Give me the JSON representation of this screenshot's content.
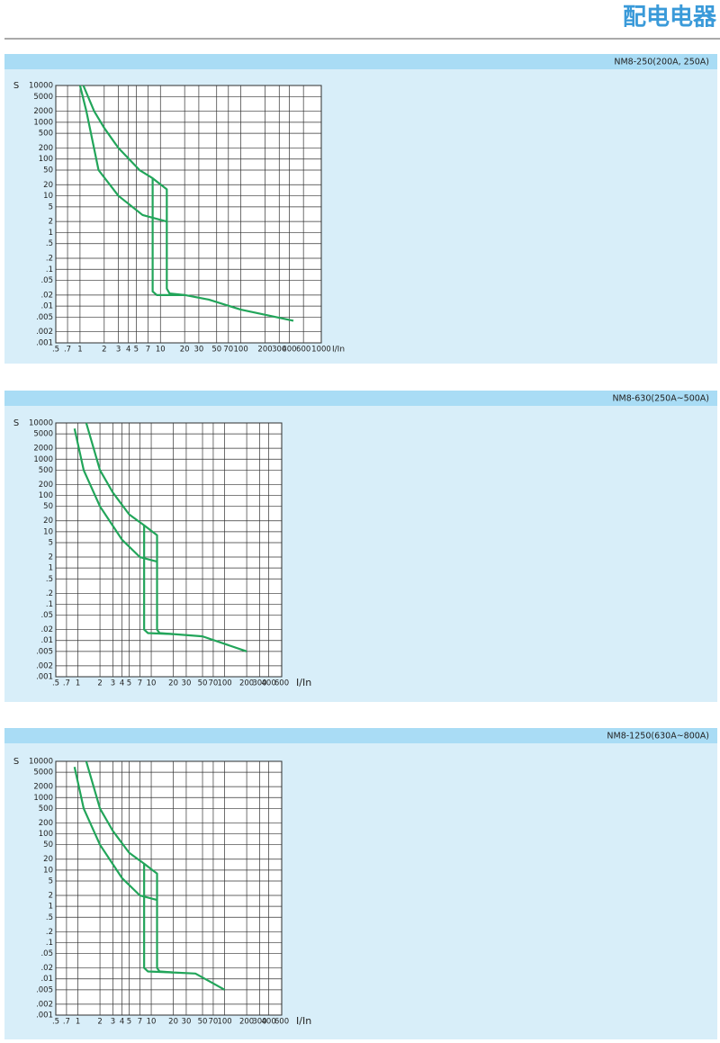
{
  "header": {
    "title": "配电电器"
  },
  "chart_data": [
    {
      "type": "line",
      "title": "NM8-250(200A, 250A)",
      "y_label": "S",
      "x_label": "I/In",
      "log_x": true,
      "log_y": true,
      "grid": true,
      "color": "#22a55a",
      "xlim": [
        0.5,
        1000
      ],
      "ylim": [
        0.001,
        10000
      ],
      "xticks": [
        {
          "value": 0.5,
          "label": ".5"
        },
        {
          "value": 0.7,
          "label": ".7"
        },
        1,
        2,
        3,
        4,
        5,
        7,
        10,
        20,
        30,
        50,
        70,
        100,
        200,
        300,
        400,
        600,
        1000
      ],
      "yticks": [
        10000,
        5000,
        2000,
        1000,
        500,
        200,
        100,
        50,
        20,
        10,
        5,
        2,
        1,
        {
          "value": 0.5,
          "label": ".5"
        },
        {
          "value": 0.2,
          "label": ".2"
        },
        {
          "value": 0.1,
          "label": ".1"
        },
        {
          "value": 0.05,
          "label": ".05"
        },
        {
          "value": 0.02,
          "label": ".02"
        },
        {
          "value": 0.01,
          "label": ".01"
        },
        {
          "value": 0.005,
          "label": ".005"
        },
        {
          "value": 0.002,
          "label": ".002"
        },
        {
          "value": 0.001,
          "label": ".001"
        }
      ],
      "series": [
        {
          "x": [
            1.1,
            1.5,
            2,
            3,
            5.5,
            8,
            12,
            12,
            13,
            20,
            40,
            100,
            450
          ],
          "values": [
            10000,
            2000,
            700,
            200,
            50,
            30,
            15,
            0.03,
            0.022,
            0.02,
            0.015,
            0.008,
            0.004
          ]
        },
        {
          "x": [
            1,
            1.2,
            1.7,
            3,
            6,
            12
          ],
          "values": [
            10000,
            2000,
            50,
            10,
            3,
            2
          ]
        },
        {
          "x": [
            8,
            8,
            9,
            20
          ],
          "values": [
            30,
            0.025,
            0.02,
            0.02
          ]
        }
      ]
    },
    {
      "type": "line",
      "title": "NM8-630(250A~500A)",
      "y_label": "S",
      "x_label": "I/In",
      "log_x": true,
      "log_y": true,
      "grid": true,
      "color": "#22a55a",
      "xlim": [
        0.5,
        600
      ],
      "ylim": [
        0.001,
        10000
      ],
      "xticks": [
        {
          "value": 0.5,
          "label": ".5"
        },
        {
          "value": 0.7,
          "label": ".7"
        },
        1,
        2,
        3,
        4,
        5,
        7,
        10,
        20,
        30,
        50,
        70,
        100,
        200,
        300,
        400,
        600
      ],
      "yticks": [
        10000,
        5000,
        2000,
        1000,
        500,
        200,
        100,
        50,
        20,
        10,
        5,
        2,
        1,
        {
          "value": 0.5,
          "label": ".5"
        },
        {
          "value": 0.2,
          "label": ".2"
        },
        {
          "value": 0.1,
          "label": ".1"
        },
        {
          "value": 0.05,
          "label": ".05"
        },
        {
          "value": 0.02,
          "label": ".02"
        },
        {
          "value": 0.01,
          "label": ".01"
        },
        {
          "value": 0.005,
          "label": ".005"
        },
        {
          "value": 0.002,
          "label": ".002"
        },
        {
          "value": 0.001,
          "label": ".001"
        }
      ],
      "series": [
        {
          "x": [
            1.3,
            2,
            3,
            5,
            8,
            12,
            12,
            13,
            20,
            50,
            200
          ],
          "values": [
            10000,
            500,
            120,
            30,
            15,
            8,
            0.02,
            0.016,
            0.015,
            0.013,
            0.005
          ]
        },
        {
          "x": [
            0.9,
            1.2,
            2,
            4,
            7,
            12
          ],
          "values": [
            7000,
            500,
            50,
            6,
            2,
            1.5
          ]
        },
        {
          "x": [
            8,
            8,
            9,
            20
          ],
          "values": [
            15,
            0.02,
            0.016,
            0.015
          ]
        }
      ]
    },
    {
      "type": "line",
      "title": "NM8-1250(630A~800A)",
      "y_label": "S",
      "x_label": "I/In",
      "log_x": true,
      "log_y": true,
      "grid": true,
      "color": "#22a55a",
      "xlim": [
        0.5,
        600
      ],
      "ylim": [
        0.001,
        10000
      ],
      "xticks": [
        {
          "value": 0.5,
          "label": ".5"
        },
        {
          "value": 0.7,
          "label": ".7"
        },
        1,
        2,
        3,
        4,
        5,
        7,
        10,
        20,
        30,
        50,
        70,
        100,
        200,
        300,
        400,
        600
      ],
      "yticks": [
        10000,
        5000,
        2000,
        1000,
        500,
        200,
        100,
        50,
        20,
        10,
        5,
        2,
        1,
        {
          "value": 0.5,
          "label": ".5"
        },
        {
          "value": 0.2,
          "label": ".2"
        },
        {
          "value": 0.1,
          "label": ".1"
        },
        {
          "value": 0.05,
          "label": ".05"
        },
        {
          "value": 0.02,
          "label": ".02"
        },
        {
          "value": 0.01,
          "label": ".01"
        },
        {
          "value": 0.005,
          "label": ".005"
        },
        {
          "value": 0.002,
          "label": ".002"
        },
        {
          "value": 0.001,
          "label": ".001"
        }
      ],
      "series": [
        {
          "x": [
            1.3,
            2,
            3,
            5,
            8,
            12,
            12,
            13,
            20,
            40,
            100
          ],
          "values": [
            10000,
            500,
            120,
            30,
            15,
            8,
            0.02,
            0.016,
            0.015,
            0.014,
            0.005
          ]
        },
        {
          "x": [
            0.9,
            1.2,
            2,
            4,
            7,
            12
          ],
          "values": [
            7000,
            500,
            50,
            6,
            2,
            1.5
          ]
        },
        {
          "x": [
            8,
            8,
            9,
            20
          ],
          "values": [
            15,
            0.02,
            0.016,
            0.015
          ]
        }
      ]
    }
  ]
}
